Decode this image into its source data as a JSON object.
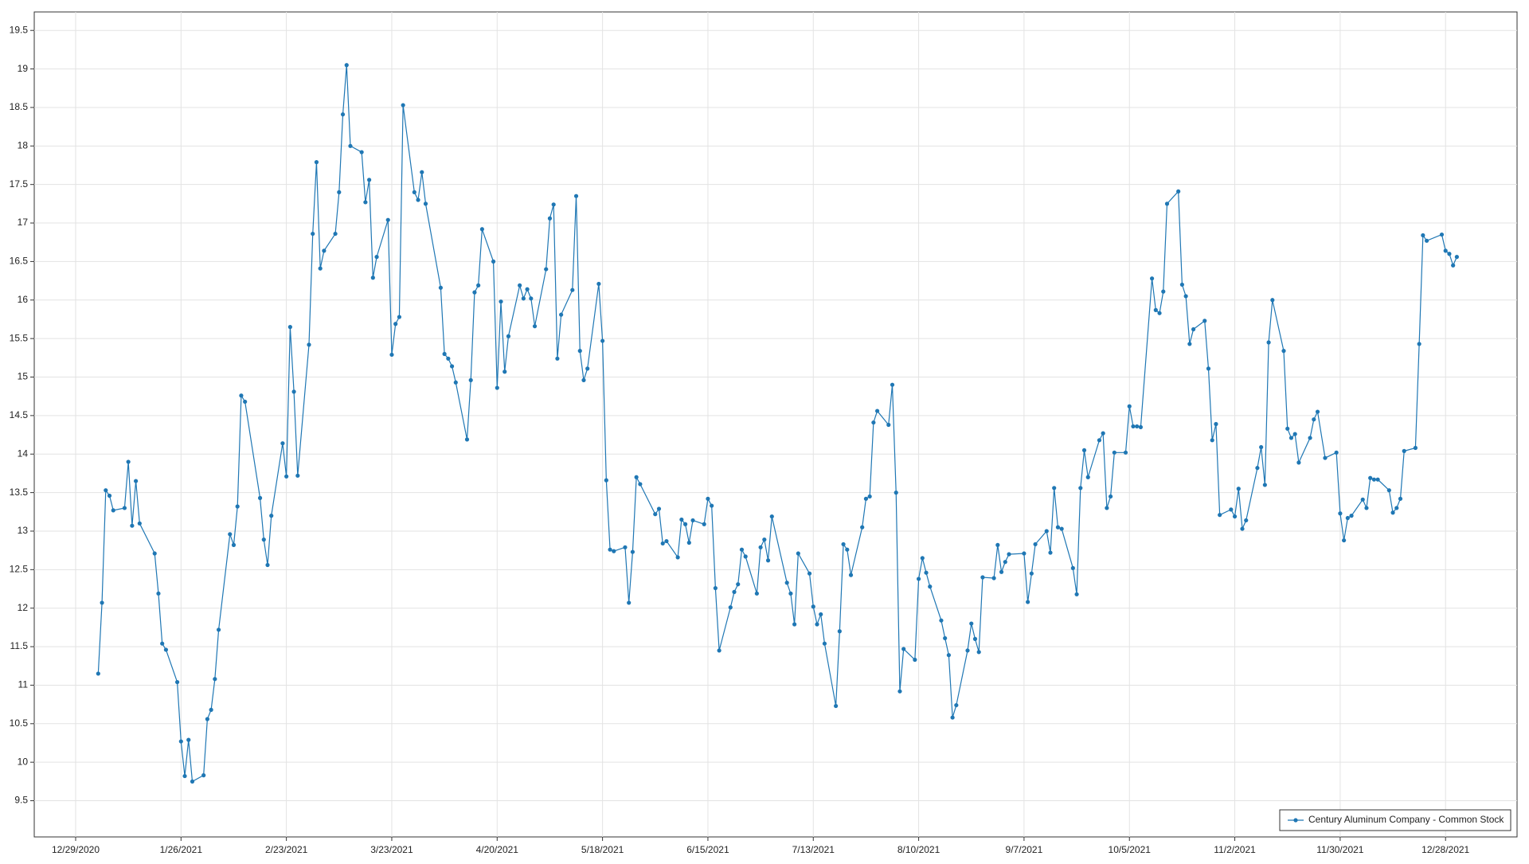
{
  "chart_data": {
    "type": "line",
    "x": [
      "1/4/2021",
      "1/5/2021",
      "1/6/2021",
      "1/7/2021",
      "1/8/2021",
      "1/11/2021",
      "1/12/2021",
      "1/13/2021",
      "1/14/2021",
      "1/15/2021",
      "1/19/2021",
      "1/20/2021",
      "1/21/2021",
      "1/22/2021",
      "1/25/2021",
      "1/26/2021",
      "1/27/2021",
      "1/28/2021",
      "1/29/2021",
      "2/1/2021",
      "2/2/2021",
      "2/3/2021",
      "2/4/2021",
      "2/5/2021",
      "2/8/2021",
      "2/9/2021",
      "2/10/2021",
      "2/11/2021",
      "2/12/2021",
      "2/16/2021",
      "2/17/2021",
      "2/18/2021",
      "2/19/2021",
      "2/22/2021",
      "2/23/2021",
      "2/24/2021",
      "2/25/2021",
      "2/26/2021",
      "3/1/2021",
      "3/2/2021",
      "3/3/2021",
      "3/4/2021",
      "3/5/2021",
      "3/8/2021",
      "3/9/2021",
      "3/10/2021",
      "3/11/2021",
      "3/12/2021",
      "3/15/2021",
      "3/16/2021",
      "3/17/2021",
      "3/18/2021",
      "3/19/2021",
      "3/22/2021",
      "3/23/2021",
      "3/24/2021",
      "3/25/2021",
      "3/26/2021",
      "3/29/2021",
      "3/30/2021",
      "3/31/2021",
      "4/1/2021",
      "4/5/2021",
      "4/6/2021",
      "4/7/2021",
      "4/8/2021",
      "4/9/2021",
      "4/12/2021",
      "4/13/2021",
      "4/14/2021",
      "4/15/2021",
      "4/16/2021",
      "4/19/2021",
      "4/20/2021",
      "4/21/2021",
      "4/22/2021",
      "4/23/2021",
      "4/26/2021",
      "4/27/2021",
      "4/28/2021",
      "4/29/2021",
      "4/30/2021",
      "5/3/2021",
      "5/4/2021",
      "5/5/2021",
      "5/6/2021",
      "5/7/2021",
      "5/10/2021",
      "5/11/2021",
      "5/12/2021",
      "5/13/2021",
      "5/14/2021",
      "5/17/2021",
      "5/18/2021",
      "5/19/2021",
      "5/20/2021",
      "5/21/2021",
      "5/24/2021",
      "5/25/2021",
      "5/26/2021",
      "5/27/2021",
      "5/28/2021",
      "6/1/2021",
      "6/2/2021",
      "6/3/2021",
      "6/4/2021",
      "6/7/2021",
      "6/8/2021",
      "6/9/2021",
      "6/10/2021",
      "6/11/2021",
      "6/14/2021",
      "6/15/2021",
      "6/16/2021",
      "6/17/2021",
      "6/18/2021",
      "6/21/2021",
      "6/22/2021",
      "6/23/2021",
      "6/24/2021",
      "6/25/2021",
      "6/28/2021",
      "6/29/2021",
      "6/30/2021",
      "7/1/2021",
      "7/2/2021",
      "7/6/2021",
      "7/7/2021",
      "7/8/2021",
      "7/9/2021",
      "7/12/2021",
      "7/13/2021",
      "7/14/2021",
      "7/15/2021",
      "7/16/2021",
      "7/19/2021",
      "7/20/2021",
      "7/21/2021",
      "7/22/2021",
      "7/23/2021",
      "7/26/2021",
      "7/27/2021",
      "7/28/2021",
      "7/29/2021",
      "7/30/2021",
      "8/2/2021",
      "8/3/2021",
      "8/4/2021",
      "8/5/2021",
      "8/6/2021",
      "8/9/2021",
      "8/10/2021",
      "8/11/2021",
      "8/12/2021",
      "8/13/2021",
      "8/16/2021",
      "8/17/2021",
      "8/18/2021",
      "8/19/2021",
      "8/20/2021",
      "8/23/2021",
      "8/24/2021",
      "8/25/2021",
      "8/26/2021",
      "8/27/2021",
      "8/30/2021",
      "8/31/2021",
      "9/1/2021",
      "9/2/2021",
      "9/3/2021",
      "9/7/2021",
      "9/8/2021",
      "9/9/2021",
      "9/10/2021",
      "9/13/2021",
      "9/14/2021",
      "9/15/2021",
      "9/16/2021",
      "9/17/2021",
      "9/20/2021",
      "9/21/2021",
      "9/22/2021",
      "9/23/2021",
      "9/24/2021",
      "9/27/2021",
      "9/28/2021",
      "9/29/2021",
      "9/30/2021",
      "10/1/2021",
      "10/4/2021",
      "10/5/2021",
      "10/6/2021",
      "10/7/2021",
      "10/8/2021",
      "10/11/2021",
      "10/12/2021",
      "10/13/2021",
      "10/14/2021",
      "10/15/2021",
      "10/18/2021",
      "10/19/2021",
      "10/20/2021",
      "10/21/2021",
      "10/22/2021",
      "10/25/2021",
      "10/26/2021",
      "10/27/2021",
      "10/28/2021",
      "10/29/2021",
      "11/1/2021",
      "11/2/2021",
      "11/3/2021",
      "11/4/2021",
      "11/5/2021",
      "11/8/2021",
      "11/9/2021",
      "11/10/2021",
      "11/11/2021",
      "11/12/2021",
      "11/15/2021",
      "11/16/2021",
      "11/17/2021",
      "11/18/2021",
      "11/19/2021",
      "11/22/2021",
      "11/23/2021",
      "11/24/2021",
      "11/26/2021",
      "11/29/2021",
      "11/30/2021",
      "12/1/2021",
      "12/2/2021",
      "12/3/2021",
      "12/6/2021",
      "12/7/2021",
      "12/8/2021",
      "12/9/2021",
      "12/10/2021",
      "12/13/2021",
      "12/14/2021",
      "12/15/2021",
      "12/16/2021",
      "12/17/2021",
      "12/20/2021",
      "12/21/2021",
      "12/22/2021",
      "12/23/2021",
      "12/27/2021",
      "12/28/2021",
      "12/29/2021",
      "12/30/2021",
      "12/31/2021"
    ],
    "series": [
      {
        "name": "Century Aluminum Company - Common Stock",
        "color": "#1f77b4",
        "values": [
          11.15,
          12.07,
          13.53,
          13.46,
          13.27,
          13.3,
          13.9,
          13.07,
          13.65,
          13.1,
          12.71,
          12.19,
          11.54,
          11.46,
          11.04,
          10.27,
          9.82,
          10.29,
          9.75,
          9.83,
          10.56,
          10.68,
          11.08,
          11.72,
          12.96,
          12.82,
          13.32,
          14.76,
          14.68,
          13.43,
          12.89,
          12.56,
          13.2,
          14.14,
          13.71,
          15.65,
          14.81,
          13.72,
          15.42,
          16.86,
          17.79,
          16.41,
          16.64,
          16.86,
          17.4,
          18.41,
          19.05,
          18.0,
          17.92,
          17.27,
          17.56,
          16.29,
          16.56,
          17.04,
          15.29,
          15.69,
          15.78,
          18.53,
          17.4,
          17.3,
          17.66,
          17.25,
          16.16,
          15.3,
          15.24,
          15.14,
          14.93,
          14.19,
          14.96,
          16.1,
          16.19,
          16.92,
          16.5,
          14.86,
          15.98,
          15.07,
          15.53,
          16.19,
          16.02,
          16.14,
          16.02,
          15.66,
          16.4,
          17.06,
          17.24,
          15.24,
          15.81,
          16.13,
          17.35,
          15.34,
          14.96,
          15.11,
          16.21,
          15.47,
          13.66,
          12.76,
          12.74,
          12.79,
          12.07,
          12.73,
          13.7,
          13.61,
          13.22,
          13.29,
          12.84,
          12.87,
          12.66,
          13.15,
          13.09,
          12.85,
          13.14,
          13.09,
          13.42,
          13.33,
          12.26,
          11.45,
          12.01,
          12.21,
          12.31,
          12.76,
          12.67,
          12.19,
          12.79,
          12.89,
          12.62,
          13.19,
          12.33,
          12.19,
          11.79,
          12.71,
          12.45,
          12.02,
          11.79,
          11.92,
          11.54,
          10.73,
          11.7,
          12.83,
          12.76,
          12.43,
          13.05,
          13.42,
          13.45,
          14.41,
          14.56,
          14.38,
          14.9,
          13.5,
          10.92,
          11.47,
          11.33,
          12.38,
          12.65,
          12.46,
          12.28,
          11.84,
          11.61,
          11.39,
          10.58,
          10.74,
          11.45,
          11.8,
          11.6,
          11.43,
          12.4,
          12.39,
          12.82,
          12.47,
          12.6,
          12.7,
          12.71,
          12.08,
          12.45,
          12.83,
          13.0,
          12.72,
          13.56,
          13.05,
          13.03,
          12.52,
          12.18,
          13.56,
          14.05,
          13.7,
          14.18,
          14.27,
          13.3,
          13.45,
          14.02,
          14.02,
          14.62,
          14.36,
          14.36,
          14.35,
          16.28,
          15.87,
          15.83,
          16.11,
          17.25,
          17.41,
          16.2,
          16.05,
          15.43,
          15.62,
          15.73,
          15.11,
          14.18,
          14.39,
          13.21,
          13.28,
          13.19,
          13.55,
          13.03,
          13.14,
          13.82,
          14.09,
          13.6,
          15.45,
          16.0,
          15.34,
          14.33,
          14.21,
          14.26,
          13.89,
          14.21,
          14.45,
          14.55,
          13.95,
          14.02,
          13.23,
          12.88,
          13.17,
          13.2,
          13.41,
          13.3,
          13.69,
          13.67,
          13.67,
          13.53,
          13.24,
          13.3,
          13.42,
          14.04,
          14.08,
          15.43,
          16.84,
          16.77,
          16.85,
          16.64,
          16.6,
          16.45,
          16.56
        ]
      }
    ],
    "xlim": [
      "12/18/2020",
      "1/16/2022"
    ],
    "xticks": [
      "12/29/2020",
      "1/26/2021",
      "2/23/2021",
      "3/23/2021",
      "4/20/2021",
      "5/18/2021",
      "6/15/2021",
      "7/13/2021",
      "8/10/2021",
      "9/7/2021",
      "10/5/2021",
      "11/2/2021",
      "11/30/2021",
      "12/28/2021"
    ],
    "ylim": [
      9.03,
      19.74
    ],
    "yticks": [
      9.5,
      10,
      10.5,
      11,
      11.5,
      12,
      12.5,
      13,
      13.5,
      14,
      14.5,
      15,
      15.5,
      16,
      16.5,
      17,
      17.5,
      18,
      18.5,
      19,
      19.5
    ],
    "grid": true,
    "legend": "lower right"
  }
}
